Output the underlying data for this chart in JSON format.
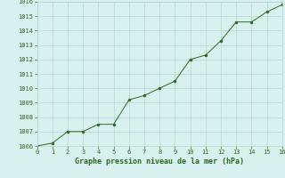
{
  "x": [
    0,
    1,
    2,
    3,
    4,
    5,
    6,
    7,
    8,
    9,
    10,
    11,
    12,
    13,
    14,
    15,
    16
  ],
  "y": [
    1006.0,
    1006.2,
    1007.0,
    1007.0,
    1007.5,
    1007.5,
    1009.2,
    1009.5,
    1010.0,
    1010.5,
    1012.0,
    1012.3,
    1013.3,
    1014.6,
    1014.6,
    1015.3,
    1015.8
  ],
  "line_color": "#2d6a1f",
  "marker_color": "#2d6a1f",
  "bg_color": "#d7f2ee",
  "grid_color": "#b8d4ce",
  "xlabel": "Graphe pression niveau de la mer (hPa)",
  "xlabel_color": "#2d6a1f",
  "xlim": [
    0,
    16
  ],
  "ylim": [
    1006,
    1016
  ],
  "yticks": [
    1006,
    1007,
    1008,
    1009,
    1010,
    1011,
    1012,
    1013,
    1014,
    1015,
    1016
  ],
  "xticks": [
    0,
    1,
    2,
    3,
    4,
    5,
    6,
    7,
    8,
    9,
    10,
    11,
    12,
    13,
    14,
    15,
    16
  ]
}
